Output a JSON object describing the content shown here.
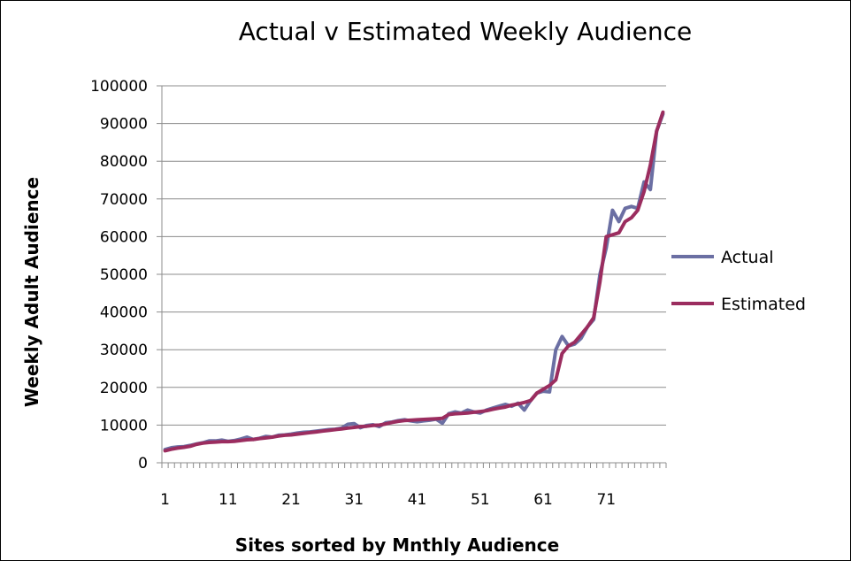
{
  "chart_data": {
    "type": "line",
    "title": "Actual v Estimated Weekly Audience",
    "xlabel": "Sites sorted by Mnthly Audience",
    "ylabel": "Weekly Adult Audience",
    "ylim": [
      0,
      100000
    ],
    "y_ticks": [
      0,
      10000,
      20000,
      30000,
      40000,
      50000,
      60000,
      70000,
      80000,
      90000,
      100000
    ],
    "x_tick_labels": [
      "1",
      "11",
      "21",
      "31",
      "41",
      "51",
      "61",
      "71"
    ],
    "x_tick_positions": [
      1,
      11,
      21,
      31,
      41,
      51,
      61,
      71
    ],
    "x_count": 80,
    "grid": "horizontal",
    "legend_position": "right",
    "x": [
      1,
      2,
      3,
      4,
      5,
      6,
      7,
      8,
      9,
      10,
      11,
      12,
      13,
      14,
      15,
      16,
      17,
      18,
      19,
      20,
      21,
      22,
      23,
      24,
      25,
      26,
      27,
      28,
      29,
      30,
      31,
      32,
      33,
      34,
      35,
      36,
      37,
      38,
      39,
      40,
      41,
      42,
      43,
      44,
      45,
      46,
      47,
      48,
      49,
      50,
      51,
      52,
      53,
      54,
      55,
      56,
      57,
      58,
      59,
      60,
      61,
      62,
      63,
      64,
      65,
      66,
      67,
      68,
      69,
      70,
      71,
      72,
      73,
      74,
      75,
      76,
      77,
      78,
      79,
      80
    ],
    "series": [
      {
        "name": "Actual",
        "color": "#6b6fa3",
        "values": [
          3500,
          4000,
          4200,
          4300,
          4600,
          5000,
          5300,
          5800,
          5800,
          6000,
          5700,
          5900,
          6300,
          6800,
          6200,
          6500,
          7000,
          6800,
          7300,
          7400,
          7600,
          7900,
          8100,
          8200,
          8400,
          8600,
          8800,
          8900,
          9200,
          10200,
          10400,
          9300,
          9900,
          10100,
          9600,
          10600,
          10800,
          11200,
          11400,
          11100,
          10900,
          11100,
          11300,
          11600,
          10500,
          13000,
          13500,
          13200,
          14000,
          13500,
          13200,
          14000,
          14500,
          15000,
          15500,
          15000,
          15800,
          14000,
          16500,
          18500,
          19000,
          18800,
          30000,
          33500,
          31000,
          31500,
          33000,
          36000,
          38000,
          50000,
          57000,
          67000,
          64000,
          67500,
          68000,
          67500,
          74500,
          72500,
          88000,
          92500
        ]
      },
      {
        "name": "Estimated",
        "color": "#9b2d5f",
        "values": [
          3200,
          3600,
          3900,
          4100,
          4400,
          4900,
          5200,
          5400,
          5500,
          5600,
          5600,
          5700,
          5900,
          6100,
          6200,
          6400,
          6600,
          6800,
          7100,
          7300,
          7400,
          7600,
          7800,
          8000,
          8200,
          8400,
          8600,
          8800,
          9000,
          9200,
          9400,
          9600,
          9700,
          9900,
          10000,
          10300,
          10700,
          11000,
          11200,
          11300,
          11400,
          11500,
          11600,
          11700,
          11800,
          12800,
          13000,
          13100,
          13200,
          13400,
          13600,
          13800,
          14200,
          14500,
          14800,
          15300,
          15600,
          16000,
          16500,
          18500,
          19500,
          20500,
          22000,
          29000,
          31000,
          32000,
          34000,
          36000,
          38500,
          48000,
          60000,
          60500,
          61000,
          64000,
          65000,
          67000,
          72000,
          79000,
          88000,
          93000
        ]
      }
    ]
  }
}
